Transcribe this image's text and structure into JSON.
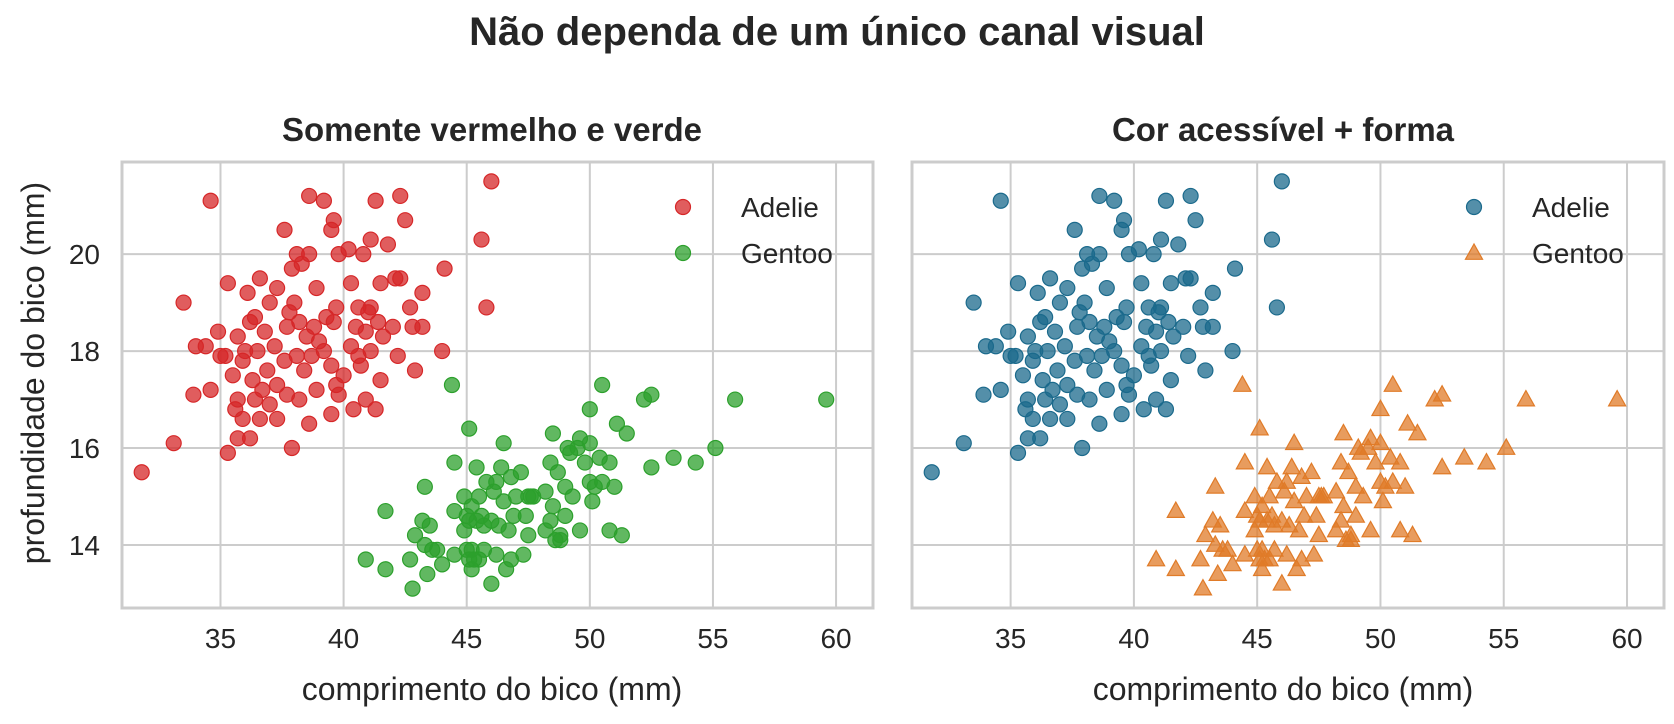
{
  "figure": {
    "suptitle": "Não dependa de um único canal visual"
  },
  "chart_data": [
    {
      "type": "scatter",
      "title": "Somente vermelho e verde",
      "xlabel": "comprimento do bico (mm)",
      "ylabel": "profundidade do bico (mm)",
      "xlim": [
        31,
        61.5
      ],
      "ylim": [
        12.7,
        21.9
      ],
      "xticks": [
        35,
        40,
        45,
        50,
        55,
        60
      ],
      "yticks": [
        14,
        16,
        18,
        20
      ],
      "grid": true,
      "legend": "top-right",
      "series": [
        {
          "name": "Adelie",
          "color": "#d62728",
          "marker": "circle",
          "ref": "adelie"
        },
        {
          "name": "Gentoo",
          "color": "#2ca02c",
          "marker": "circle",
          "ref": "gentoo"
        }
      ]
    },
    {
      "type": "scatter",
      "title": "Cor acessível + forma",
      "xlabel": "comprimento do bico (mm)",
      "ylabel": "",
      "xlim": [
        31,
        61.5
      ],
      "ylim": [
        12.7,
        21.9
      ],
      "xticks": [
        35,
        40,
        45,
        50,
        55,
        60
      ],
      "yticks": [
        14,
        16,
        18,
        20
      ],
      "grid": true,
      "legend": "top-right",
      "series": [
        {
          "name": "Adelie",
          "color": "#1b6a8c",
          "marker": "circle",
          "ref": "adelie"
        },
        {
          "name": "Gentoo",
          "color": "#e07b28",
          "marker": "triangle",
          "ref": "gentoo"
        }
      ]
    }
  ],
  "points": {
    "adelie": [
      [
        34.6,
        21.1
      ],
      [
        38.6,
        21.2
      ],
      [
        39.2,
        21.1
      ],
      [
        41.3,
        21.1
      ],
      [
        42.3,
        21.2
      ],
      [
        46.0,
        21.5
      ],
      [
        39.6,
        20.7
      ],
      [
        42.5,
        20.7
      ],
      [
        41.1,
        20.3
      ],
      [
        39.5,
        20.5
      ],
      [
        37.6,
        20.5
      ],
      [
        38.1,
        20.0
      ],
      [
        38.6,
        20.0
      ],
      [
        39.8,
        20.0
      ],
      [
        40.2,
        20.1
      ],
      [
        40.8,
        20.0
      ],
      [
        41.8,
        20.2
      ],
      [
        45.6,
        20.3
      ],
      [
        37.9,
        19.7
      ],
      [
        38.3,
        19.8
      ],
      [
        44.1,
        19.7
      ],
      [
        35.3,
        19.4
      ],
      [
        36.6,
        19.5
      ],
      [
        37.3,
        19.3
      ],
      [
        38.9,
        19.3
      ],
      [
        40.3,
        19.4
      ],
      [
        41.5,
        19.4
      ],
      [
        42.1,
        19.5
      ],
      [
        42.3,
        19.5
      ],
      [
        43.2,
        19.2
      ],
      [
        36.1,
        19.2
      ],
      [
        33.5,
        19.0
      ],
      [
        37.0,
        19.0
      ],
      [
        38.0,
        19.0
      ],
      [
        39.7,
        18.9
      ],
      [
        40.6,
        18.9
      ],
      [
        41.1,
        18.9
      ],
      [
        45.8,
        18.9
      ],
      [
        36.4,
        18.7
      ],
      [
        37.8,
        18.8
      ],
      [
        39.3,
        18.7
      ],
      [
        41.0,
        18.8
      ],
      [
        42.7,
        18.9
      ],
      [
        43.2,
        18.5
      ],
      [
        34.9,
        18.4
      ],
      [
        36.2,
        18.6
      ],
      [
        37.7,
        18.5
      ],
      [
        38.2,
        18.6
      ],
      [
        38.8,
        18.5
      ],
      [
        39.6,
        18.6
      ],
      [
        40.5,
        18.5
      ],
      [
        41.4,
        18.6
      ],
      [
        42.0,
        18.5
      ],
      [
        35.7,
        18.3
      ],
      [
        36.8,
        18.4
      ],
      [
        38.5,
        18.3
      ],
      [
        39.0,
        18.2
      ],
      [
        40.9,
        18.4
      ],
      [
        41.6,
        18.3
      ],
      [
        42.8,
        18.5
      ],
      [
        34.4,
        18.1
      ],
      [
        35.0,
        17.9
      ],
      [
        36.0,
        18.0
      ],
      [
        37.2,
        18.1
      ],
      [
        38.1,
        17.9
      ],
      [
        39.2,
        18.0
      ],
      [
        40.3,
        18.1
      ],
      [
        41.1,
        18.0
      ],
      [
        42.2,
        17.9
      ],
      [
        44.0,
        18.0
      ],
      [
        35.2,
        17.9
      ],
      [
        36.5,
        18.0
      ],
      [
        37.6,
        17.8
      ],
      [
        38.7,
        17.9
      ],
      [
        40.6,
        17.9
      ],
      [
        34.0,
        18.1
      ],
      [
        35.9,
        17.8
      ],
      [
        36.9,
        17.6
      ],
      [
        38.4,
        17.6
      ],
      [
        39.5,
        17.7
      ],
      [
        40.0,
        17.5
      ],
      [
        40.7,
        17.7
      ],
      [
        41.5,
        17.4
      ],
      [
        42.9,
        17.6
      ],
      [
        39.7,
        17.3
      ],
      [
        35.5,
        17.5
      ],
      [
        36.3,
        17.4
      ],
      [
        37.3,
        17.3
      ],
      [
        38.9,
        17.2
      ],
      [
        36.7,
        17.2
      ],
      [
        37.7,
        17.1
      ],
      [
        39.8,
        17.1
      ],
      [
        40.9,
        17.0
      ],
      [
        33.9,
        17.1
      ],
      [
        34.6,
        17.2
      ],
      [
        35.7,
        17.0
      ],
      [
        36.4,
        17.0
      ],
      [
        37.0,
        16.9
      ],
      [
        38.2,
        17.0
      ],
      [
        39.5,
        16.7
      ],
      [
        40.4,
        16.8
      ],
      [
        41.3,
        16.8
      ],
      [
        35.6,
        16.8
      ],
      [
        36.6,
        16.6
      ],
      [
        37.3,
        16.6
      ],
      [
        38.6,
        16.5
      ],
      [
        35.9,
        16.6
      ],
      [
        33.1,
        16.1
      ],
      [
        35.3,
        15.9
      ],
      [
        35.7,
        16.2
      ],
      [
        36.2,
        16.2
      ],
      [
        37.9,
        16.0
      ],
      [
        31.8,
        15.5
      ]
    ],
    "gentoo": [
      [
        44.4,
        17.3
      ],
      [
        50.5,
        17.3
      ],
      [
        52.5,
        17.1
      ],
      [
        55.9,
        17.0
      ],
      [
        59.6,
        17.0
      ],
      [
        52.2,
        17.0
      ],
      [
        50.0,
        16.8
      ],
      [
        45.1,
        16.4
      ],
      [
        46.5,
        16.1
      ],
      [
        48.5,
        16.3
      ],
      [
        49.6,
        16.2
      ],
      [
        50.0,
        16.1
      ],
      [
        51.1,
        16.5
      ],
      [
        51.5,
        16.3
      ],
      [
        49.1,
        16.0
      ],
      [
        49.5,
        16.0
      ],
      [
        44.5,
        15.7
      ],
      [
        45.4,
        15.6
      ],
      [
        46.4,
        15.6
      ],
      [
        47.2,
        15.5
      ],
      [
        48.4,
        15.7
      ],
      [
        49.8,
        15.7
      ],
      [
        50.4,
        15.8
      ],
      [
        50.8,
        15.7
      ],
      [
        53.4,
        15.8
      ],
      [
        54.3,
        15.7
      ],
      [
        55.1,
        16.0
      ],
      [
        48.7,
        15.5
      ],
      [
        49.2,
        15.9
      ],
      [
        43.3,
        15.2
      ],
      [
        45.5,
        15.0
      ],
      [
        45.8,
        15.3
      ],
      [
        46.2,
        15.3
      ],
      [
        46.8,
        15.4
      ],
      [
        47.5,
        15.0
      ],
      [
        48.2,
        15.1
      ],
      [
        49.0,
        15.2
      ],
      [
        50.0,
        15.3
      ],
      [
        50.2,
        15.2
      ],
      [
        50.5,
        15.3
      ],
      [
        51.0,
        15.2
      ],
      [
        52.5,
        15.6
      ],
      [
        47.6,
        15.0
      ],
      [
        44.9,
        15.0
      ],
      [
        45.2,
        14.8
      ],
      [
        46.1,
        15.1
      ],
      [
        46.5,
        14.9
      ],
      [
        47.0,
        15.0
      ],
      [
        47.7,
        15.0
      ],
      [
        48.5,
        14.8
      ],
      [
        49.3,
        15.0
      ],
      [
        50.1,
        14.9
      ],
      [
        41.7,
        14.7
      ],
      [
        44.5,
        14.7
      ],
      [
        45.0,
        14.6
      ],
      [
        45.7,
        14.4
      ],
      [
        46.0,
        14.5
      ],
      [
        46.9,
        14.6
      ],
      [
        48.4,
        14.5
      ],
      [
        49.0,
        14.6
      ],
      [
        44.9,
        14.3
      ],
      [
        45.4,
        14.5
      ],
      [
        46.3,
        14.4
      ],
      [
        47.4,
        14.6
      ],
      [
        43.2,
        14.5
      ],
      [
        43.5,
        14.4
      ],
      [
        45.1,
        14.5
      ],
      [
        45.6,
        14.6
      ],
      [
        46.7,
        14.3
      ],
      [
        47.5,
        14.2
      ],
      [
        48.8,
        14.2
      ],
      [
        49.6,
        14.3
      ],
      [
        50.8,
        14.3
      ],
      [
        51.3,
        14.2
      ],
      [
        42.9,
        14.2
      ],
      [
        43.3,
        14.0
      ],
      [
        43.6,
        13.9
      ],
      [
        44.0,
        13.6
      ],
      [
        44.5,
        13.8
      ],
      [
        45.2,
        13.9
      ],
      [
        45.3,
        13.7
      ],
      [
        45.7,
        13.9
      ],
      [
        46.2,
        13.8
      ],
      [
        46.8,
        13.7
      ],
      [
        47.3,
        13.8
      ],
      [
        48.2,
        14.3
      ],
      [
        48.8,
        14.1
      ],
      [
        48.6,
        14.1
      ],
      [
        45.5,
        13.7
      ],
      [
        43.8,
        13.9
      ],
      [
        40.9,
        13.7
      ],
      [
        42.7,
        13.7
      ],
      [
        41.7,
        13.5
      ],
      [
        43.4,
        13.4
      ],
      [
        45.0,
        13.9
      ],
      [
        45.1,
        13.7
      ],
      [
        45.2,
        13.5
      ],
      [
        46.0,
        13.2
      ],
      [
        46.6,
        13.5
      ],
      [
        42.8,
        13.1
      ]
    ]
  }
}
